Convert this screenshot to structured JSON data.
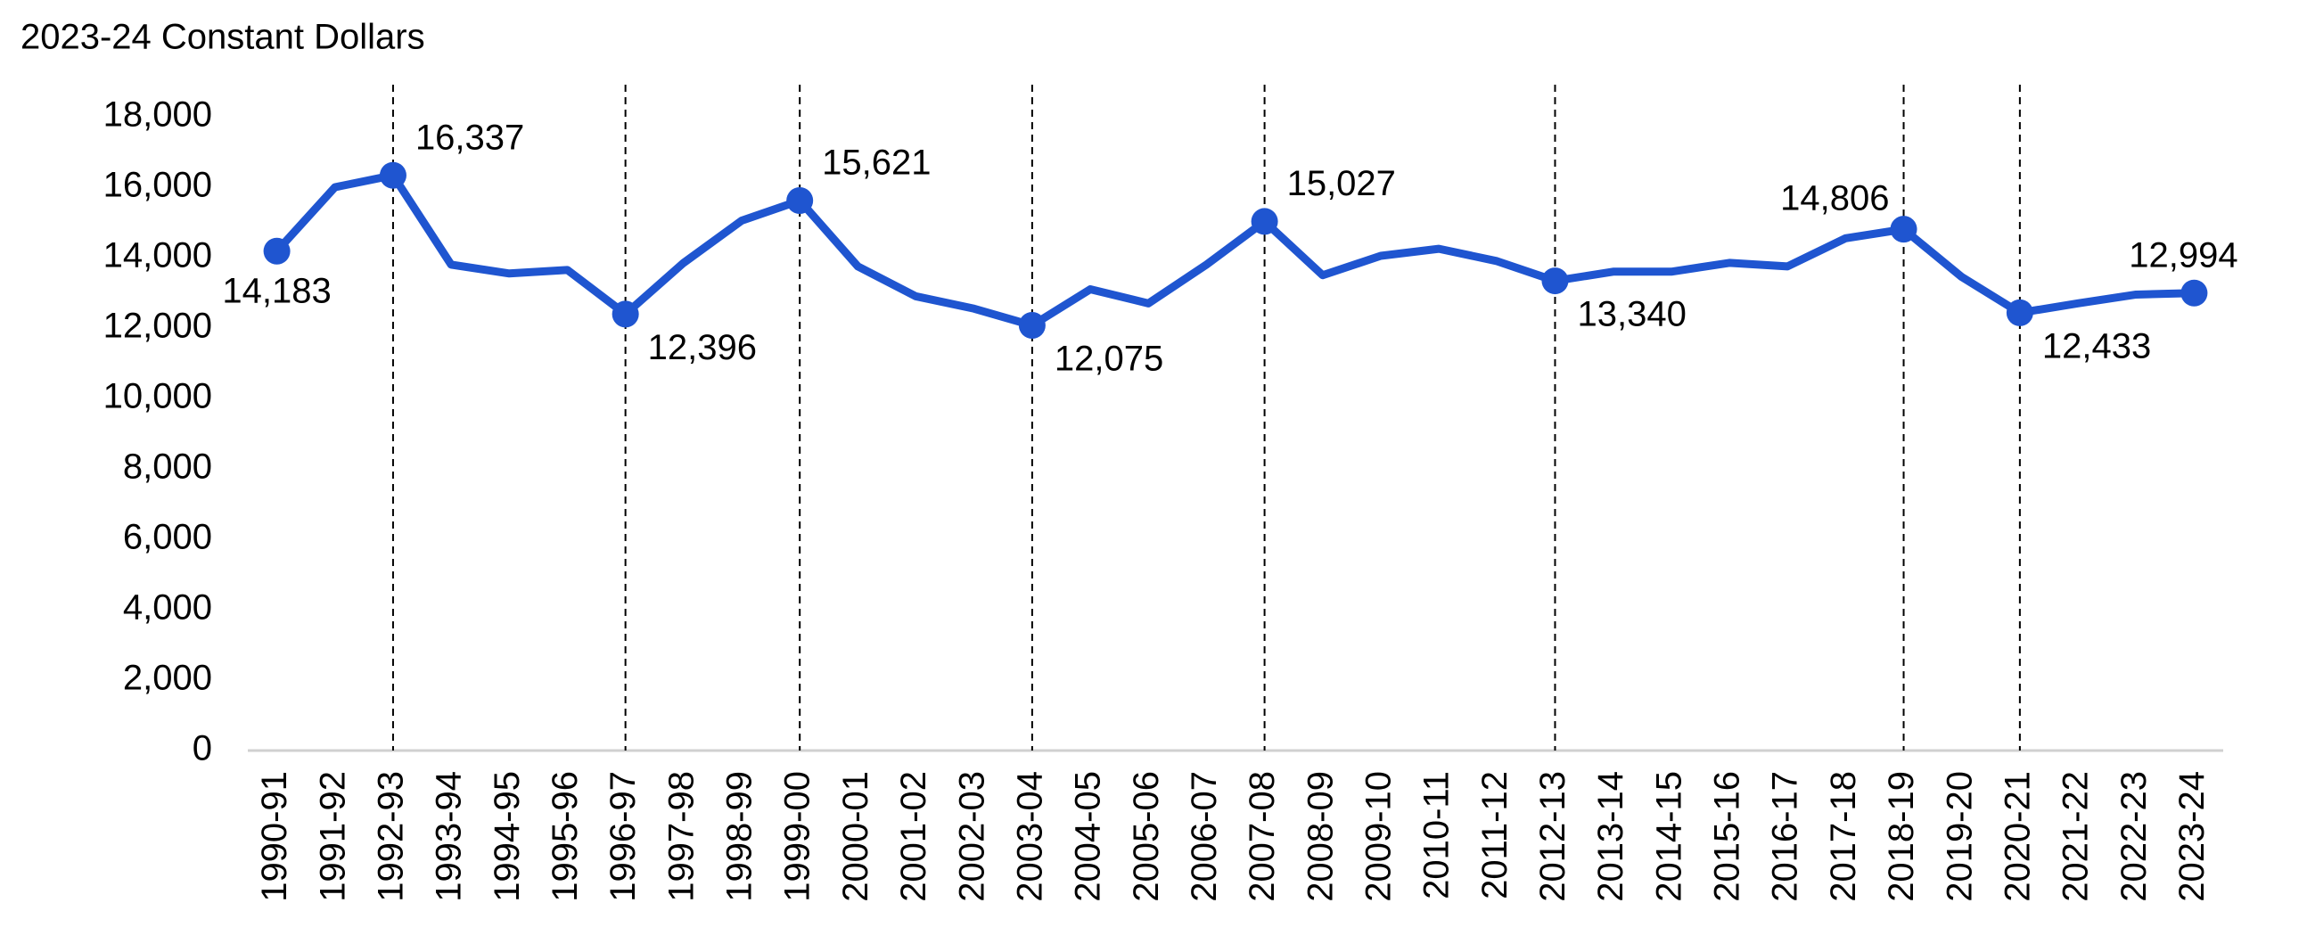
{
  "chart_data": {
    "type": "line",
    "title": "2023-24 Constant Dollars",
    "categories": [
      "1990-91",
      "1991-92",
      "1992-93",
      "1993-94",
      "1994-95",
      "1995-96",
      "1996-97",
      "1997-98",
      "1998-99",
      "1999-00",
      "2000-01",
      "2001-02",
      "2002-03",
      "2003-04",
      "2004-05",
      "2005-06",
      "2006-07",
      "2007-08",
      "2008-09",
      "2009-10",
      "2010-11",
      "2011-12",
      "2012-13",
      "2013-14",
      "2014-15",
      "2015-16",
      "2016-17",
      "2017-18",
      "2018-19",
      "2019-20",
      "2020-21",
      "2021-22",
      "2022-23",
      "2023-24"
    ],
    "series": [
      {
        "color": "#1f55d0",
        "values": [
          14183,
          16000,
          16337,
          13800,
          13550,
          13650,
          12396,
          13850,
          15050,
          15621,
          13750,
          12900,
          12550,
          12075,
          13100,
          12700,
          13800,
          15027,
          13500,
          14050,
          14250,
          13900,
          13340,
          13600,
          13600,
          13850,
          13750,
          14550,
          14806,
          13450,
          12433,
          12700,
          12950,
          12994
        ],
        "value_labels": [
          "14,183",
          null,
          "16,337",
          null,
          null,
          null,
          "12,396",
          null,
          null,
          "15,621",
          null,
          null,
          null,
          "12,075",
          null,
          null,
          null,
          "15,027",
          null,
          null,
          null,
          null,
          "13,340",
          null,
          null,
          null,
          null,
          null,
          "14,806",
          null,
          "12,433",
          null,
          null,
          "12,994"
        ]
      }
    ],
    "dashed_lines": [
      2,
      6,
      9,
      13,
      17,
      22,
      28,
      30
    ],
    "ylim": [
      0,
      18000
    ],
    "yticks": [
      0,
      {
        "value": 2000,
        "label": "2,000"
      },
      {
        "value": 4000,
        "label": "4,000"
      },
      {
        "value": 6000,
        "label": "6,000"
      },
      {
        "value": 8000,
        "label": "8,000"
      },
      {
        "value": 10000,
        "label": "10,000"
      },
      {
        "value": 12000,
        "label": "12,000"
      },
      {
        "value": 14000,
        "label": "14,000"
      },
      {
        "value": 16000,
        "label": "16,000"
      },
      {
        "value": 18000,
        "label": "18,000"
      }
    ]
  }
}
